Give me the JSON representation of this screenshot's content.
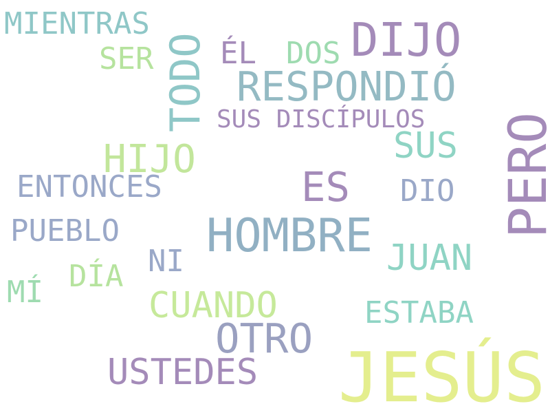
{
  "word_cloud": {
    "words": [
      {
        "key": "mientras",
        "text": "MIENTRAS"
      },
      {
        "key": "dijo",
        "text": "DIJO"
      },
      {
        "key": "ser",
        "text": "SER"
      },
      {
        "key": "todo",
        "text": "TODO"
      },
      {
        "key": "el",
        "text": "ÉL"
      },
      {
        "key": "dos",
        "text": "DOS"
      },
      {
        "key": "respondio",
        "text": "RESPONDIÓ"
      },
      {
        "key": "sus_discipulos",
        "text": "SUS DISCÍPULOS"
      },
      {
        "key": "sus",
        "text": "SUS"
      },
      {
        "key": "pero",
        "text": "PERO"
      },
      {
        "key": "hijo",
        "text": "HIJO"
      },
      {
        "key": "entonces",
        "text": "ENTONCES"
      },
      {
        "key": "es",
        "text": "ES"
      },
      {
        "key": "dio",
        "text": "DIO"
      },
      {
        "key": "pueblo",
        "text": "PUEBLO"
      },
      {
        "key": "hombre",
        "text": "HOMBRE"
      },
      {
        "key": "ni",
        "text": "NI"
      },
      {
        "key": "juan",
        "text": "JUAN"
      },
      {
        "key": "dia",
        "text": "DÍA"
      },
      {
        "key": "mi",
        "text": "MÍ"
      },
      {
        "key": "cuando",
        "text": "CUANDO"
      },
      {
        "key": "estaba",
        "text": "ESTABA"
      },
      {
        "key": "otro",
        "text": "OTRO"
      },
      {
        "key": "ustedes",
        "text": "USTEDES"
      },
      {
        "key": "jesus",
        "text": "JESÚS"
      }
    ]
  }
}
